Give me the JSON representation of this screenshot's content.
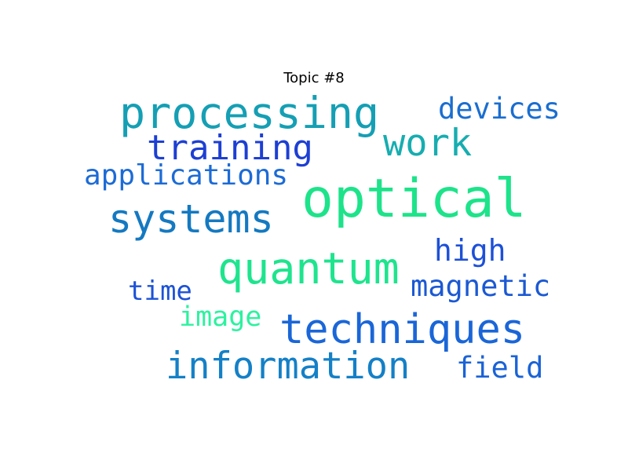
{
  "title": "Topic #8",
  "words": [
    {
      "text": "optical",
      "color": "#1de38a"
    },
    {
      "text": "processing",
      "color": "#159fb4"
    },
    {
      "text": "training",
      "color": "#1d3fd3"
    },
    {
      "text": "work",
      "color": "#17adb0"
    },
    {
      "text": "devices",
      "color": "#1a6ed0"
    },
    {
      "text": "applications",
      "color": "#1c6bd6"
    },
    {
      "text": "systems",
      "color": "#1479c1"
    },
    {
      "text": "quantum",
      "color": "#1ee48e"
    },
    {
      "text": "high",
      "color": "#1d50d8"
    },
    {
      "text": "magnetic",
      "color": "#1b59d3"
    },
    {
      "text": "time",
      "color": "#1c52d6"
    },
    {
      "text": "image",
      "color": "#2cf2a0"
    },
    {
      "text": "techniques",
      "color": "#1a66d8"
    },
    {
      "text": "information",
      "color": "#1480c7"
    },
    {
      "text": "field",
      "color": "#1a63d6"
    }
  ]
}
